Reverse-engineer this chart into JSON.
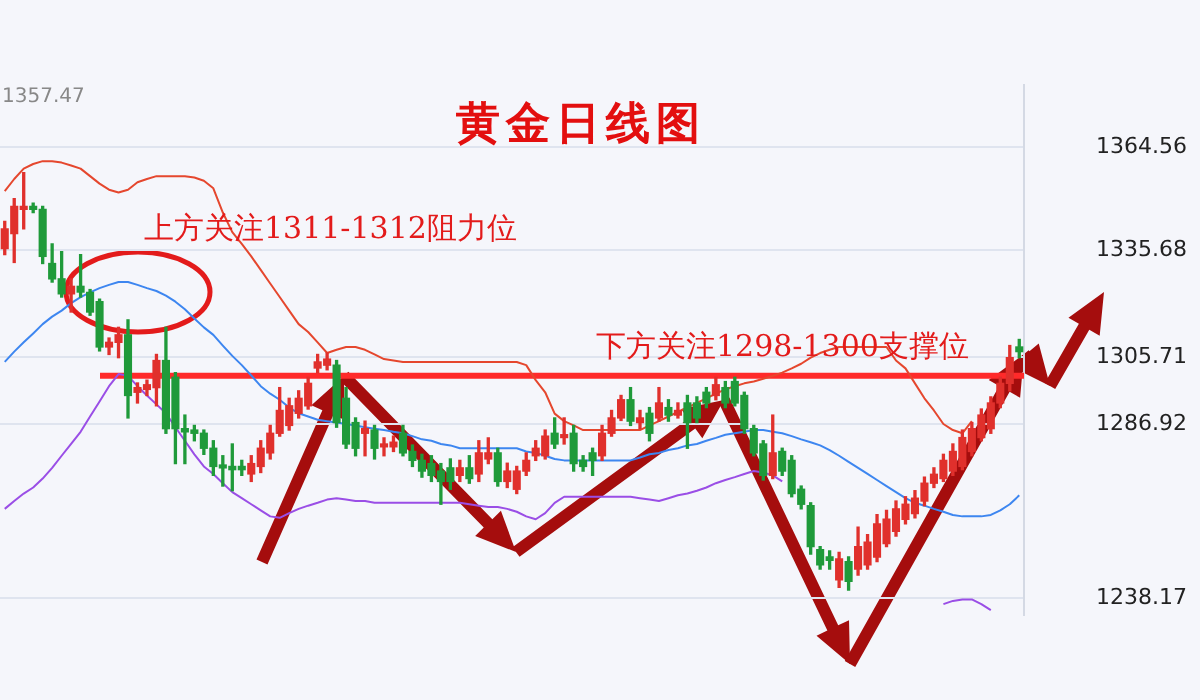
{
  "chart_data": {
    "type": "candlestick",
    "title": "黄金日线图",
    "categories": [
      null,
      null,
      null,
      null,
      null,
      null,
      null,
      null,
      null,
      null,
      null,
      null,
      null,
      null,
      null,
      null,
      null,
      null,
      null,
      null,
      null,
      null,
      null,
      null,
      null,
      null,
      null,
      null,
      null,
      null,
      null,
      null,
      null,
      null,
      null,
      null,
      null,
      null,
      null,
      null,
      null,
      null,
      null,
      null,
      null,
      null,
      null,
      null,
      null,
      null,
      null,
      null,
      null,
      null,
      null,
      null,
      null,
      null,
      null,
      null,
      null,
      null,
      null,
      null,
      null,
      null,
      null,
      null,
      null,
      null,
      null,
      null,
      null,
      null,
      null,
      null,
      null,
      null,
      null,
      null,
      null,
      null,
      null,
      null,
      null,
      null,
      null,
      null,
      null,
      null,
      null,
      null,
      null,
      null,
      null,
      null,
      null,
      null,
      null,
      null,
      null,
      null,
      null,
      null,
      null,
      null,
      null,
      null
    ],
    "ohlc": [
      [
        1336.2,
        1343.8,
        1334.5,
        1341.7
      ],
      [
        1340.4,
        1350.2,
        1332.3,
        1348.0
      ],
      [
        1347.2,
        1357.47,
        1341.7,
        1348.0
      ],
      [
        1348.0,
        1348.9,
        1346.3,
        1347.2
      ],
      [
        1347.2,
        1348.0,
        1332.0,
        1334.0
      ],
      [
        1332.0,
        1337.5,
        1326.8,
        1327.7
      ],
      [
        1327.7,
        1335.3,
        1322.6,
        1323.5
      ],
      [
        1323.5,
        1327.7,
        1318.4,
        1325.6
      ],
      [
        1325.6,
        1334.5,
        1322.6,
        1324.0
      ],
      [
        1323.9,
        1324.7,
        1317.5,
        1318.4
      ],
      [
        1321.3,
        1322.0,
        1307.5,
        1308.6
      ],
      [
        1308.6,
        1311.1,
        1306.5,
        1309.9
      ],
      [
        1309.9,
        1314.1,
        1305.6,
        1312.0
      ],
      [
        1312.0,
        1316.2,
        1288.7,
        1295.0
      ],
      [
        1295.9,
        1298.5,
        1292.9,
        1297.2
      ],
      [
        1296.7,
        1299.3,
        1295.0,
        1298.0
      ],
      [
        1297.2,
        1306.5,
        1292.1,
        1304.8
      ],
      [
        1304.8,
        1314.1,
        1284.4,
        1285.7
      ],
      [
        1300.1,
        1301.4,
        1275.9,
        1285.7
      ],
      [
        1285.7,
        1289.5,
        1275.9,
        1284.8
      ],
      [
        1285.3,
        1286.6,
        1282.3,
        1284.4
      ],
      [
        1284.4,
        1285.3,
        1278.5,
        1280.2
      ],
      [
        1280.2,
        1282.3,
        1272.6,
        1275.1
      ],
      [
        1275.5,
        1278.1,
        1269.6,
        1274.7
      ],
      [
        1275.1,
        1281.4,
        1268.3,
        1274.2
      ],
      [
        1275.1,
        1276.8,
        1272.6,
        1274.2
      ],
      [
        1273.0,
        1278.1,
        1270.9,
        1275.9
      ],
      [
        1275.1,
        1282.3,
        1273.4,
        1280.2
      ],
      [
        1278.9,
        1286.6,
        1277.2,
        1284.4
      ],
      [
        1284.4,
        1297.2,
        1283.6,
        1290.8
      ],
      [
        1286.6,
        1294.2,
        1285.3,
        1292.1
      ],
      [
        1290.0,
        1296.3,
        1288.7,
        1294.2
      ],
      [
        1292.1,
        1300.1,
        1291.2,
        1298.4
      ],
      [
        1302.7,
        1306.5,
        1301.4,
        1304.4
      ],
      [
        1303.5,
        1306.9,
        1302.2,
        1305.2
      ],
      [
        1303.5,
        1304.8,
        1286.1,
        1287.4
      ],
      [
        1294.2,
        1297.2,
        1280.2,
        1281.4
      ],
      [
        1287.4,
        1288.7,
        1278.1,
        1280.2
      ],
      [
        1284.4,
        1287.8,
        1278.1,
        1285.7
      ],
      [
        1285.3,
        1286.6,
        1277.2,
        1280.2
      ],
      [
        1280.6,
        1283.1,
        1278.1,
        1281.4
      ],
      [
        1280.6,
        1283.6,
        1279.3,
        1281.9
      ],
      [
        1284.4,
        1286.6,
        1278.1,
        1278.9
      ],
      [
        1279.3,
        1281.1,
        1275.1,
        1276.8
      ],
      [
        1276.8,
        1278.5,
        1272.1,
        1273.8
      ],
      [
        1275.9,
        1278.1,
        1270.9,
        1272.6
      ],
      [
        1273.8,
        1275.9,
        1264.5,
        1270.9
      ],
      [
        1274.7,
        1277.2,
        1268.7,
        1270.9
      ],
      [
        1272.6,
        1276.8,
        1270.9,
        1274.7
      ],
      [
        1274.7,
        1278.1,
        1270.4,
        1271.7
      ],
      [
        1273.0,
        1282.3,
        1270.9,
        1278.9
      ],
      [
        1277.2,
        1283.1,
        1275.9,
        1278.9
      ],
      [
        1278.9,
        1280.2,
        1269.6,
        1270.9
      ],
      [
        1270.9,
        1276.0,
        1269.2,
        1273.8
      ],
      [
        1268.7,
        1275.1,
        1267.5,
        1273.8
      ],
      [
        1273.8,
        1278.9,
        1272.6,
        1276.8
      ],
      [
        1278.1,
        1282.3,
        1276.8,
        1280.2
      ],
      [
        1278.1,
        1285.3,
        1277.2,
        1283.6
      ],
      [
        1284.4,
        1288.7,
        1280.2,
        1281.4
      ],
      [
        1283.2,
        1288.7,
        1281.4,
        1284.0
      ],
      [
        1284.4,
        1286.6,
        1273.8,
        1275.9
      ],
      [
        1276.8,
        1278.1,
        1273.8,
        1275.1
      ],
      [
        1278.9,
        1280.2,
        1272.6,
        1276.8
      ],
      [
        1278.1,
        1286.6,
        1276.8,
        1284.4
      ],
      [
        1284.4,
        1290.8,
        1283.6,
        1288.7
      ],
      [
        1288.7,
        1295.0,
        1288.0,
        1293.8
      ],
      [
        1293.8,
        1297.2,
        1286.6,
        1287.8
      ],
      [
        1287.4,
        1290.8,
        1285.7,
        1288.7
      ],
      [
        1290.0,
        1291.6,
        1282.3,
        1284.4
      ],
      [
        1288.7,
        1297.2,
        1287.8,
        1292.9
      ],
      [
        1291.6,
        1293.8,
        1287.8,
        1289.5
      ],
      [
        1289.5,
        1292.9,
        1288.7,
        1290.8
      ],
      [
        1292.9,
        1295.0,
        1280.2,
        1287.4
      ],
      [
        1292.9,
        1294.6,
        1287.4,
        1288.7
      ],
      [
        1295.9,
        1297.2,
        1291.6,
        1292.9
      ],
      [
        1295.0,
        1300.1,
        1293.8,
        1298.0
      ],
      [
        1297.2,
        1298.9,
        1291.6,
        1292.9
      ],
      [
        1298.9,
        1300.1,
        1292.1,
        1292.9
      ],
      [
        1295.0,
        1295.9,
        1284.4,
        1285.7
      ],
      [
        1285.7,
        1286.6,
        1278.1,
        1278.9
      ],
      [
        1281.4,
        1282.3,
        1271.3,
        1272.6
      ],
      [
        1272.6,
        1289.5,
        1271.7,
        1278.9
      ],
      [
        1279.3,
        1280.2,
        1272.6,
        1273.8
      ],
      [
        1276.8,
        1278.1,
        1266.6,
        1267.5
      ],
      [
        1268.7,
        1269.6,
        1263.2,
        1264.5
      ],
      [
        1264.1,
        1264.9,
        1250.5,
        1252.6
      ],
      [
        1251.8,
        1252.6,
        1246.3,
        1247.5
      ],
      [
        1249.7,
        1251.4,
        1246.3,
        1248.8
      ],
      [
        1243.3,
        1251.0,
        1241.2,
        1249.2
      ],
      [
        1248.4,
        1249.7,
        1240.4,
        1242.9
      ],
      [
        1246.3,
        1258.1,
        1244.6,
        1252.6
      ],
      [
        1247.5,
        1256.0,
        1246.3,
        1253.9
      ],
      [
        1249.7,
        1261.6,
        1248.4,
        1259.0
      ],
      [
        1253.5,
        1262.8,
        1252.6,
        1260.3
      ],
      [
        1256.9,
        1265.4,
        1255.6,
        1263.2
      ],
      [
        1260.3,
        1266.6,
        1259.0,
        1264.5
      ],
      [
        1261.9,
        1268.3,
        1260.7,
        1266.2
      ],
      [
        1265.4,
        1272.1,
        1264.1,
        1270.4
      ],
      [
        1270.4,
        1274.7,
        1269.2,
        1272.9
      ],
      [
        1271.7,
        1278.5,
        1270.9,
        1276.8
      ],
      [
        1273.8,
        1281.4,
        1272.6,
        1279.3
      ],
      [
        1275.1,
        1285.3,
        1274.2,
        1283.2
      ],
      [
        1279.3,
        1287.4,
        1278.1,
        1285.7
      ],
      [
        1283.2,
        1291.2,
        1282.3,
        1289.5
      ],
      [
        1285.7,
        1294.6,
        1284.4,
        1292.9
      ],
      [
        1292.9,
        1300.1,
        1291.6,
        1298.4
      ],
      [
        1298.4,
        1309.0,
        1296.3,
        1305.6
      ],
      [
        1308.6,
        1310.7,
        1305.6,
        1307.3
      ]
    ],
    "colors": [
      "#e0302c",
      "#e0302c",
      "#e0302c",
      "#1f9a3a",
      "#1f9a3a",
      "#1f9a3a",
      "#1f9a3a",
      "#e0302c",
      "#1f9a3a",
      "#1f9a3a",
      "#1f9a3a",
      "#e0302c",
      "#e0302c",
      "#1f9a3a",
      "#e0302c",
      "#e0302c",
      "#e0302c",
      "#1f9a3a",
      "#1f9a3a",
      "#1f9a3a",
      "#1f9a3a",
      "#1f9a3a",
      "#1f9a3a",
      "#1f9a3a",
      "#1f9a3a",
      "#1f9a3a",
      "#e0302c",
      "#e0302c",
      "#e0302c",
      "#e0302c",
      "#e0302c",
      "#e0302c",
      "#e0302c",
      "#e0302c",
      "#e0302c",
      "#1f9a3a",
      "#1f9a3a",
      "#1f9a3a",
      "#e0302c",
      "#1f9a3a",
      "#e0302c",
      "#e0302c",
      "#1f9a3a",
      "#1f9a3a",
      "#1f9a3a",
      "#1f9a3a",
      "#1f9a3a",
      "#1f9a3a",
      "#e0302c",
      "#1f9a3a",
      "#e0302c",
      "#e0302c",
      "#1f9a3a",
      "#e0302c",
      "#e0302c",
      "#e0302c",
      "#e0302c",
      "#e0302c",
      "#1f9a3a",
      "#e0302c",
      "#1f9a3a",
      "#1f9a3a",
      "#1f9a3a",
      "#e0302c",
      "#e0302c",
      "#e0302c",
      "#1f9a3a",
      "#e0302c",
      "#1f9a3a",
      "#e0302c",
      "#1f9a3a",
      "#e0302c",
      "#1f9a3a",
      "#1f9a3a",
      "#1f9a3a",
      "#e0302c",
      "#1f9a3a",
      "#1f9a3a",
      "#1f9a3a",
      "#1f9a3a",
      "#1f9a3a",
      "#e0302c",
      "#1f9a3a",
      "#1f9a3a",
      "#1f9a3a",
      "#1f9a3a",
      "#1f9a3a",
      "#1f9a3a",
      "#e0302c",
      "#1f9a3a",
      "#e0302c",
      "#e0302c",
      "#e0302c",
      "#e0302c",
      "#e0302c",
      "#e0302c",
      "#e0302c",
      "#e0302c",
      "#e0302c",
      "#e0302c",
      "#e0302c",
      "#e0302c",
      "#e0302c",
      "#e0302c",
      "#e0302c",
      "#e0302c",
      "#e0302c",
      "#1f9a3a"
    ],
    "series": [
      {
        "type": "line",
        "color": "#e5472e",
        "values": [
          1352.3,
          1355.7,
          1358.6,
          1359.9,
          1360.7,
          1360.7,
          1360.3,
          1359.5,
          1358.6,
          1356.5,
          1354.4,
          1352.7,
          1351.9,
          1352.7,
          1354.8,
          1355.7,
          1356.5,
          1356.5,
          1356.5,
          1356.5,
          1356.1,
          1355.2,
          1353.1,
          1346.3,
          1340.8,
          1337.5,
          1334.0,
          1330.2,
          1326.4,
          1322.6,
          1318.8,
          1315.0,
          1312.8,
          1309.9,
          1306.9,
          1307.8,
          1308.6,
          1308.6,
          1307.8,
          1306.5,
          1305.2,
          1304.8,
          1304.4,
          1304.4,
          1304.4,
          1304.4,
          1304.4,
          1304.4,
          1304.4,
          1304.4,
          1304.4,
          1304.4,
          1304.4,
          1304.4,
          1304.4,
          1303.5,
          1299.3,
          1295.9,
          1289.9,
          1287.8,
          1286.6,
          1285.3,
          1285.3,
          1285.3,
          1285.3,
          1285.3,
          1285.3,
          1285.3,
          1286.6,
          1287.8,
          1289.1,
          1290.4,
          1291.6,
          1292.9,
          1294.2,
          1295.5,
          1296.7,
          1297.6,
          1298.4,
          1298.9,
          1299.7,
          1300.5,
          1301.4,
          1302.6,
          1303.9,
          1305.6,
          1306.9,
          1307.8,
          1308.6,
          1308.6,
          1308.6,
          1308.6,
          1308.6,
          1308.6,
          1304.8,
          1302.6,
          1298.4,
          1294.2,
          1290.8,
          1287.0,
          1285.3,
          1284.4,
          1287.8,
          null,
          null,
          null,
          null,
          null
        ]
      },
      {
        "type": "line",
        "color": "#3d86f0",
        "values": [
          1304.4,
          1307.3,
          1309.9,
          1312.4,
          1315.0,
          1317.1,
          1318.8,
          1320.9,
          1322.6,
          1323.9,
          1325.1,
          1326.0,
          1326.8,
          1326.8,
          1326.0,
          1325.1,
          1324.3,
          1323.0,
          1321.3,
          1319.2,
          1316.6,
          1314.1,
          1312.0,
          1309.0,
          1306.1,
          1303.5,
          1300.6,
          1297.6,
          1295.5,
          1293.8,
          1291.6,
          1290.0,
          1289.1,
          1288.2,
          1287.8,
          1287.4,
          1287.0,
          1286.6,
          1286.1,
          1285.7,
          1285.3,
          1284.8,
          1284.4,
          1283.6,
          1282.7,
          1282.3,
          1281.4,
          1281.0,
          1280.2,
          1280.2,
          1280.2,
          1280.2,
          1280.2,
          1280.2,
          1280.2,
          1279.3,
          1278.9,
          1278.1,
          1277.2,
          1276.8,
          1276.8,
          1276.8,
          1276.8,
          1276.8,
          1276.8,
          1276.8,
          1276.8,
          1277.6,
          1278.5,
          1278.9,
          1279.7,
          1280.2,
          1281.0,
          1281.4,
          1282.3,
          1283.1,
          1284.0,
          1284.4,
          1284.8,
          1285.3,
          1285.3,
          1284.8,
          1284.4,
          1283.6,
          1282.7,
          1281.9,
          1281.0,
          1279.7,
          1278.1,
          1276.4,
          1274.7,
          1273.0,
          1271.3,
          1269.6,
          1267.9,
          1266.2,
          1264.9,
          1264.1,
          1263.2,
          1262.4,
          1261.5,
          1261.1,
          1261.1,
          1261.1,
          1261.5,
          1262.8,
          1264.5,
          1267.0
        ]
      },
      {
        "type": "line",
        "color": "#9a4ee6",
        "values": [
          1263.2,
          1265.4,
          1267.5,
          1269.2,
          1271.7,
          1274.7,
          1278.1,
          1281.4,
          1284.8,
          1289.1,
          1293.3,
          1297.6,
          1301.0,
          1300.5,
          1297.6,
          1295.0,
          1292.5,
          1290.0,
          1286.1,
          1282.3,
          1278.5,
          1275.1,
          1273.0,
          1270.4,
          1267.9,
          1266.2,
          1264.5,
          1262.8,
          1261.1,
          1260.7,
          1262.0,
          1263.2,
          1264.1,
          1264.9,
          1265.8,
          1266.2,
          1265.8,
          1265.4,
          1265.4,
          1264.9,
          1264.9,
          1264.9,
          1264.9,
          1264.9,
          1264.9,
          1264.9,
          1264.9,
          1264.9,
          1264.9,
          1264.5,
          1264.1,
          1263.7,
          1263.7,
          1263.2,
          1262.4,
          1261.1,
          1260.3,
          1262.0,
          1264.9,
          1266.6,
          1266.6,
          1266.6,
          1266.6,
          1266.6,
          1266.6,
          1266.6,
          1266.6,
          1266.2,
          1265.8,
          1265.4,
          1266.2,
          1267.0,
          1267.5,
          1268.3,
          1269.2,
          1270.4,
          1271.3,
          1272.1,
          1273.0,
          1273.8,
          1273.4,
          1272.6,
          1270.9,
          null,
          null,
          null,
          null,
          null,
          null,
          null,
          null,
          null,
          null,
          null,
          null,
          null,
          null,
          null,
          null,
          1236.5,
          1237.4,
          1237.8,
          1237.8,
          1236.5,
          1234.8,
          null,
          null,
          null
        ]
      }
    ],
    "ylim": [
      1233.5,
      1382
    ],
    "yticks": [
      1238.17,
      1286.92,
      1305.71,
      1335.68,
      1364.56
    ],
    "grid": "y",
    "legend": false,
    "tick_labels": "y",
    "marker": "none",
    "ref_lines": [
      {
        "axis": "y",
        "value": 1300.5,
        "color": "#ff2a2a"
      }
    ],
    "annotations": [
      "上方关注1311-1312阻力位",
      "下方关注1298-1300支撑位",
      "1357.47"
    ]
  }
}
